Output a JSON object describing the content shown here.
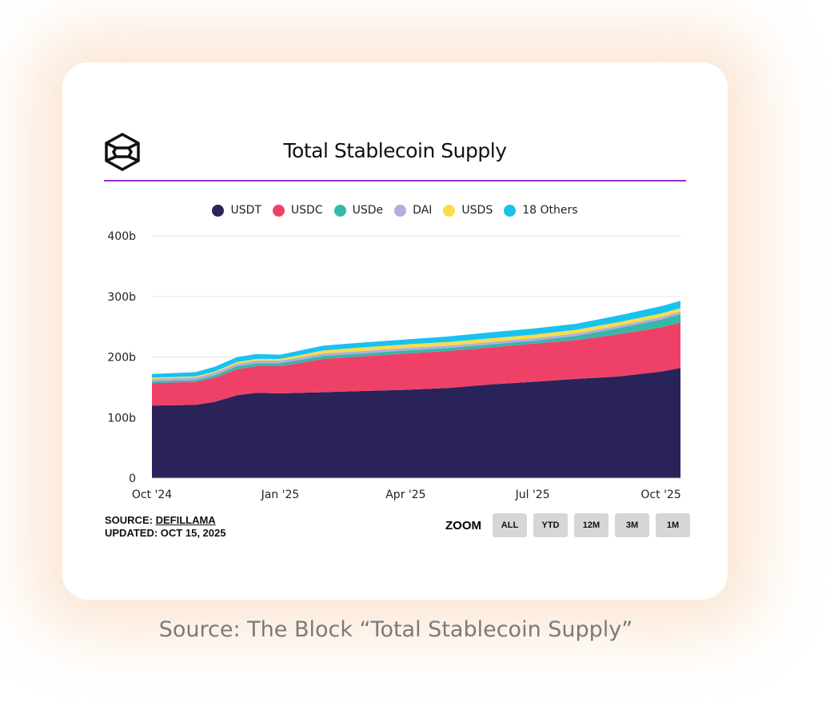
{
  "caption": "Source: The Block “Total Stablecoin Supply”",
  "source_label": "SOURCE:",
  "source_link": "DEFILLAMA",
  "updated": "UPDATED: OCT 15, 2025",
  "zoom": {
    "label": "ZOOM",
    "buttons": [
      "ALL",
      "YTD",
      "12M",
      "3M",
      "1M"
    ]
  },
  "chart_data": {
    "type": "area",
    "stacked": true,
    "title": "Total Stablecoin Supply",
    "xlabel": "",
    "ylabel": "",
    "ylim": [
      0,
      400
    ],
    "y_ticks": [
      "0",
      "100b",
      "200b",
      "300b",
      "400b"
    ],
    "y_tick_values": [
      0,
      100,
      200,
      300,
      400
    ],
    "x_ticks": [
      "Oct '24",
      "Jan '25",
      "Apr '25",
      "Jul '25",
      "Oct '25"
    ],
    "x_tick_dates": [
      "2024-10-01",
      "2025-01-01",
      "2025-04-01",
      "2025-07-01",
      "2025-10-01"
    ],
    "xlim": [
      "2024-10-01",
      "2025-10-15"
    ],
    "grid": true,
    "legend_position": "top",
    "unit": "billions USD",
    "x": [
      "2024-10-01",
      "2024-11-01",
      "2024-11-15",
      "2024-12-01",
      "2024-12-15",
      "2025-01-01",
      "2025-02-01",
      "2025-03-01",
      "2025-04-01",
      "2025-05-01",
      "2025-06-01",
      "2025-07-01",
      "2025-08-01",
      "2025-09-01",
      "2025-10-01",
      "2025-10-15"
    ],
    "series": [
      {
        "name": "USDT",
        "color": "#2a2359",
        "values": [
          120,
          121,
          126,
          137,
          141,
          140,
          142,
          144,
          146,
          149,
          155,
          159,
          164,
          168,
          176,
          182
        ]
      },
      {
        "name": "USDC",
        "color": "#ef4167",
        "values": [
          37,
          38,
          40,
          43,
          44,
          45,
          55,
          57,
          60,
          61,
          61,
          63,
          64,
          70,
          73,
          75
        ]
      },
      {
        "name": "USDe",
        "color": "#36b8a8",
        "values": [
          3,
          3,
          4,
          5,
          5,
          5,
          5,
          5,
          5,
          5,
          5,
          5,
          7,
          10,
          13,
          14
        ]
      },
      {
        "name": "DAI",
        "color": "#b3acdf",
        "values": [
          4,
          4,
          4,
          4,
          4,
          4,
          4,
          4,
          4,
          4,
          4,
          4,
          4,
          4,
          4,
          4
        ]
      },
      {
        "name": "USDS",
        "color": "#f9dc4a",
        "values": [
          2,
          2,
          2,
          3,
          3,
          3,
          5,
          6,
          6,
          6,
          6,
          6,
          6,
          6,
          6,
          6
        ]
      },
      {
        "name": "18 Others",
        "color": "#18c2f0",
        "values": [
          6,
          7,
          8,
          8,
          8,
          7,
          8,
          8,
          8,
          9,
          10,
          10,
          10,
          11,
          12,
          12
        ]
      }
    ]
  }
}
